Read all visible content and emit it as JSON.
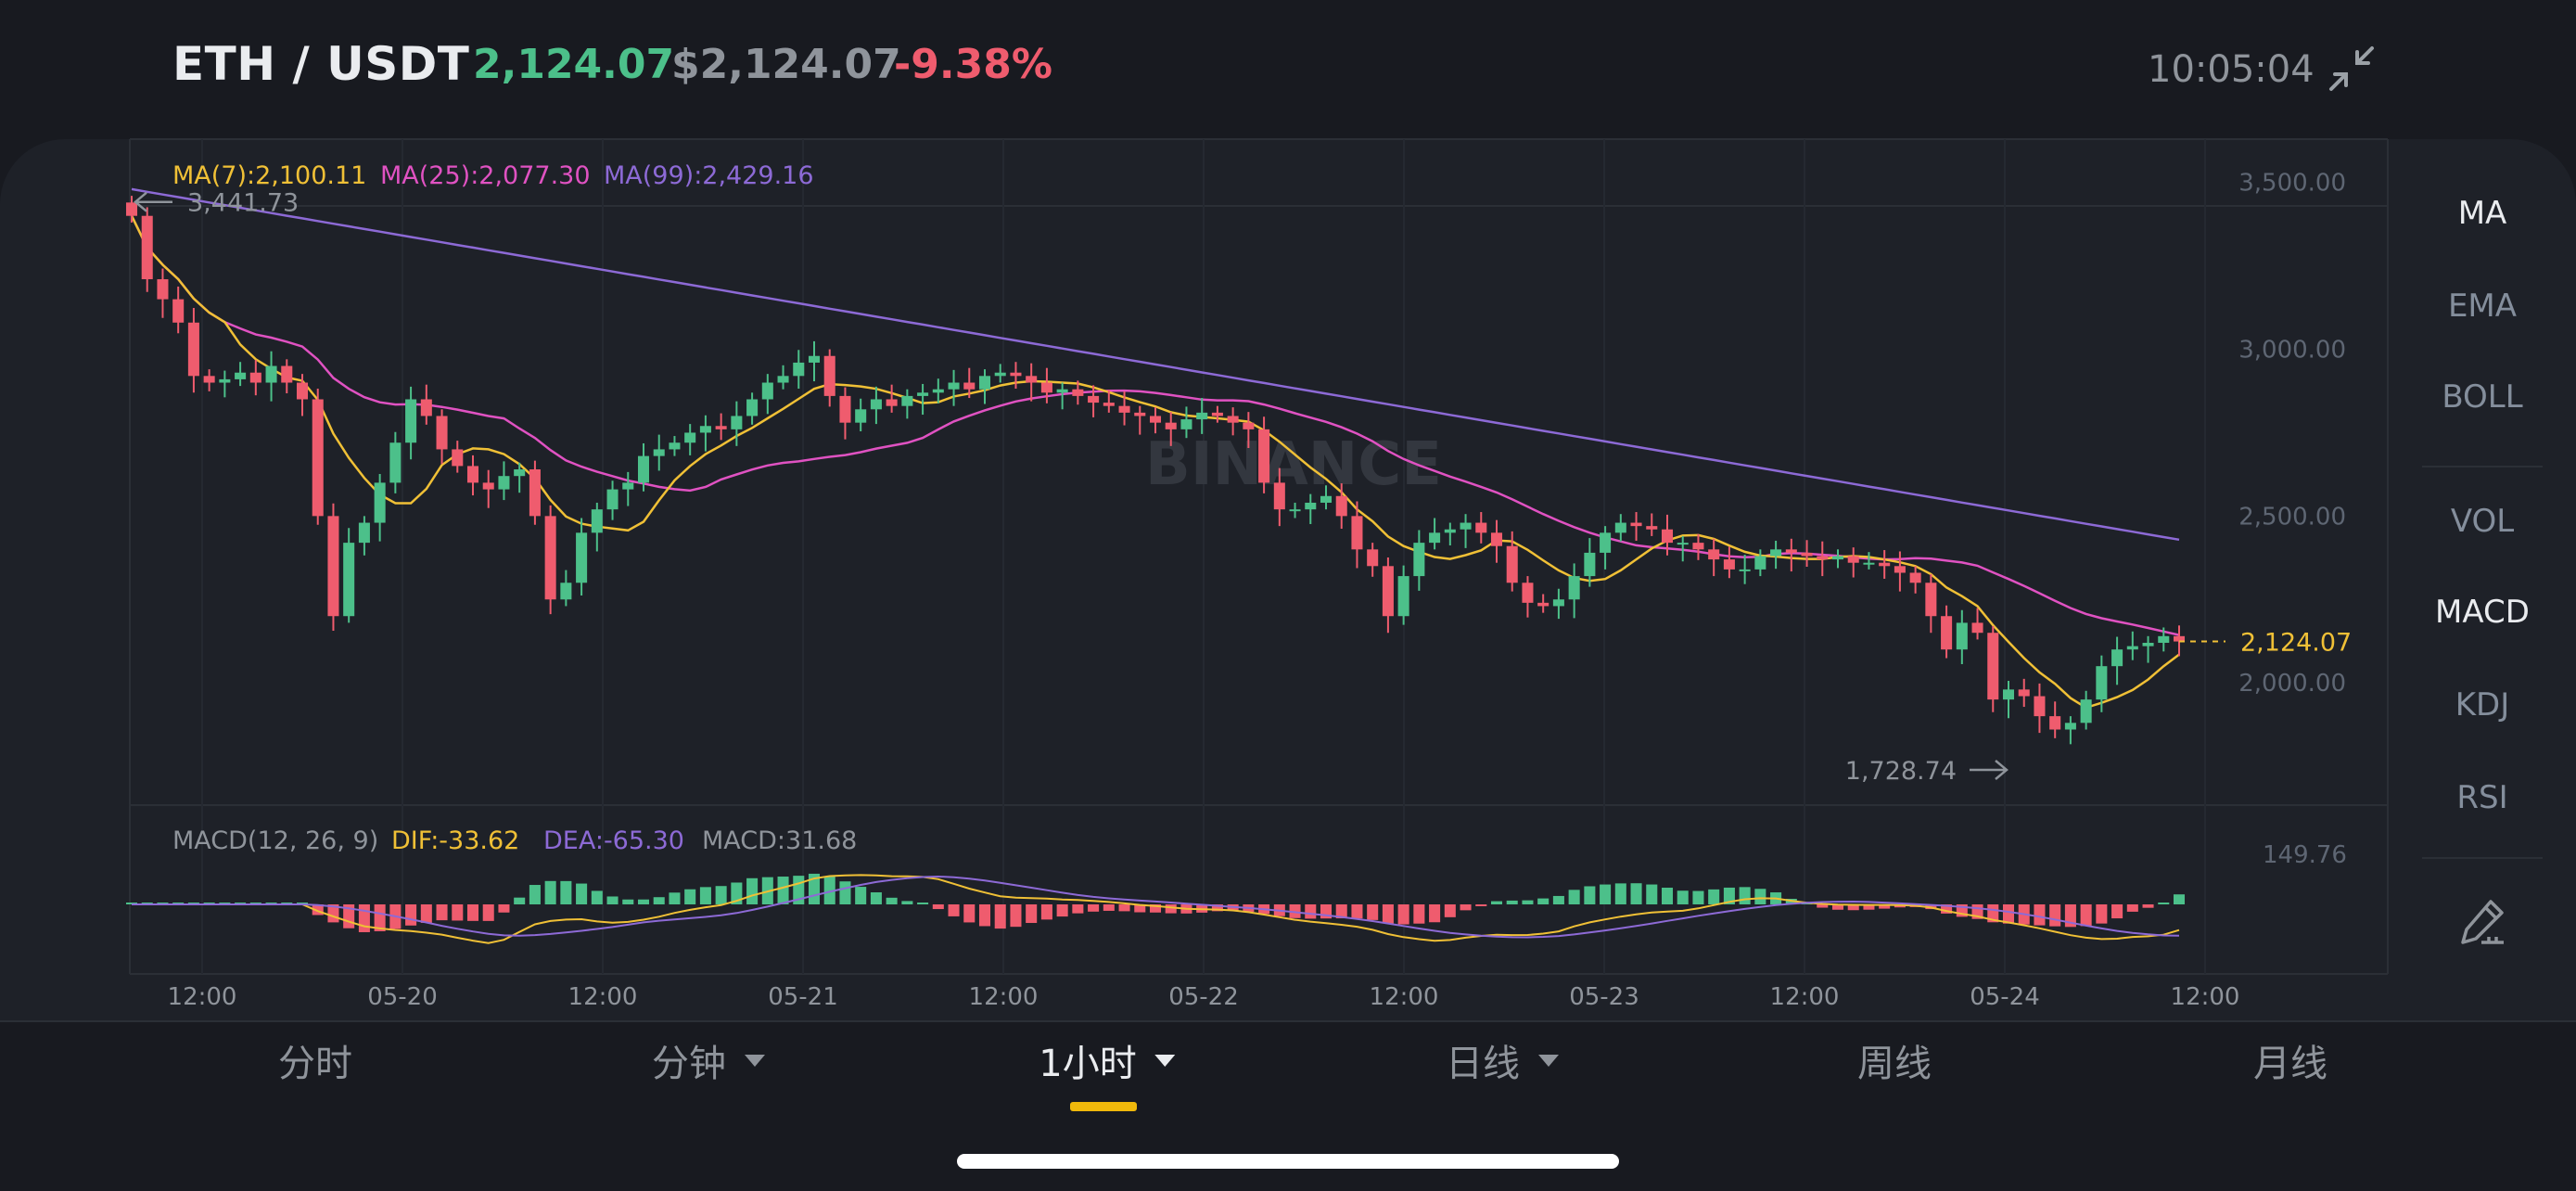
{
  "header": {
    "pair": "ETH / USDT",
    "price": "2,124.07",
    "usd_price": "$2,124.07",
    "change": "-9.38%",
    "time": "10:05:04",
    "collapse_icon": "collapse-arrows-icon"
  },
  "legend": {
    "ma7": "MA(7):2,100.11",
    "ma25": "MA(25):2,077.30",
    "ma99": "MA(99):2,429.16"
  },
  "macd_legend": {
    "params": "MACD(12, 26, 9)",
    "dif": "DIF:-33.62",
    "dea": "DEA:-65.30",
    "macd": "MACD:31.68"
  },
  "watermark": "BINANCE",
  "indicators": {
    "items": [
      {
        "label": "MA",
        "active": true
      },
      {
        "label": "EMA",
        "active": false
      },
      {
        "label": "BOLL",
        "active": false
      },
      {
        "label": "VOL",
        "active": false
      },
      {
        "label": "MACD",
        "active": true
      },
      {
        "label": "KDJ",
        "active": false
      },
      {
        "label": "RSI",
        "active": false
      }
    ],
    "draw_icon": "pen-ruler-icon"
  },
  "tabs": [
    {
      "label": "分时",
      "caret": false,
      "active": false
    },
    {
      "label": "分钟",
      "caret": true,
      "active": false
    },
    {
      "label": "1小时",
      "caret": true,
      "active": true
    },
    {
      "label": "日线",
      "caret": true,
      "active": false
    },
    {
      "label": "周线",
      "caret": false,
      "active": false
    },
    {
      "label": "月线",
      "caret": false,
      "active": false
    }
  ],
  "colors": {
    "up": "#4cc08a",
    "down": "#ef5c6e",
    "ma7": "#f0c036",
    "ma25": "#e052c2",
    "ma99": "#8d6ad6",
    "accent": "#f0b90b"
  },
  "chart_data": {
    "type": "candlestick",
    "ylim": [
      1600,
      3630
    ],
    "y_ticks": [
      "3,500.00",
      "3,000.00",
      "2,500.00",
      "2,000.00"
    ],
    "y_tick_values": [
      3500,
      3000,
      2500,
      2000
    ],
    "x_ticks": [
      "12:00",
      "05-20",
      "12:00",
      "05-21",
      "12:00",
      "05-22",
      "12:00",
      "05-23",
      "12:00",
      "05-24",
      "12:00"
    ],
    "last_price_label": "2,124.07",
    "last_price": 2124.07,
    "high_marker": {
      "label": "3,441.73",
      "value": 3441.73
    },
    "low_marker": {
      "label": "1,728.74",
      "value": 1728.74
    },
    "ma99_start": 3480,
    "closes": [
      3400,
      3210,
      3150,
      3080,
      2920,
      2900,
      2910,
      2930,
      2900,
      2950,
      2900,
      2850,
      2500,
      2200,
      2420,
      2480,
      2600,
      2720,
      2850,
      2800,
      2700,
      2650,
      2600,
      2580,
      2620,
      2640,
      2500,
      2250,
      2300,
      2450,
      2520,
      2580,
      2600,
      2680,
      2700,
      2720,
      2750,
      2770,
      2760,
      2800,
      2850,
      2900,
      2920,
      2960,
      2980,
      2860,
      2780,
      2820,
      2850,
      2830,
      2860,
      2870,
      2880,
      2900,
      2880,
      2920,
      2930,
      2920,
      2900,
      2870,
      2880,
      2860,
      2840,
      2830,
      2810,
      2800,
      2780,
      2760,
      2790,
      2810,
      2800,
      2780,
      2760,
      2600,
      2520,
      2520,
      2540,
      2560,
      2500,
      2400,
      2350,
      2200,
      2320,
      2420,
      2450,
      2460,
      2480,
      2450,
      2410,
      2300,
      2240,
      2230,
      2250,
      2320,
      2390,
      2450,
      2480,
      2470,
      2460,
      2420,
      2420,
      2400,
      2370,
      2340,
      2340,
      2380,
      2400,
      2390,
      2380,
      2370,
      2380,
      2360,
      2360,
      2350,
      2330,
      2300,
      2200,
      2100,
      2180,
      2150,
      1950,
      1980,
      1960,
      1900,
      1860,
      1880,
      1950,
      2050,
      2100,
      2110,
      2120,
      2140,
      2124
    ]
  }
}
